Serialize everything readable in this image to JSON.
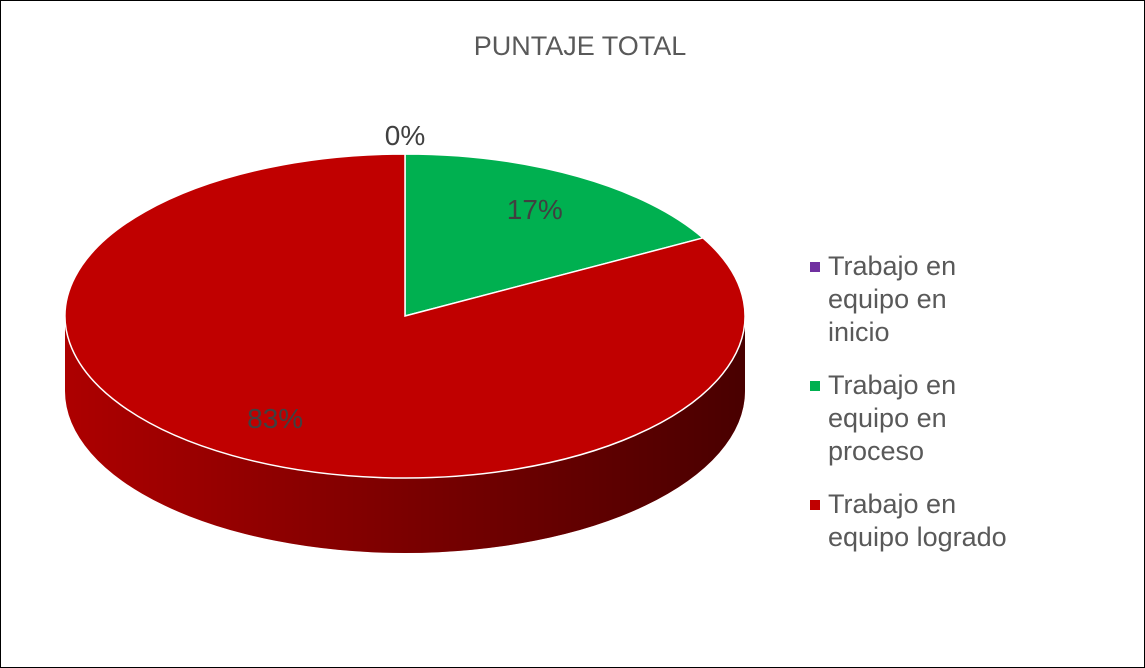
{
  "chart_data": {
    "type": "pie",
    "title": "PUNTAJE TOTAL",
    "categories": [
      "Trabajo en equipo en inicio",
      "Trabajo en equipo en proceso",
      "Trabajo en equipo logrado"
    ],
    "values": [
      0,
      17,
      83
    ],
    "value_labels": [
      "0%",
      "17%",
      "83%"
    ],
    "colors": [
      "#7030a0",
      "#00b050",
      "#c00000"
    ],
    "legend": "right"
  }
}
